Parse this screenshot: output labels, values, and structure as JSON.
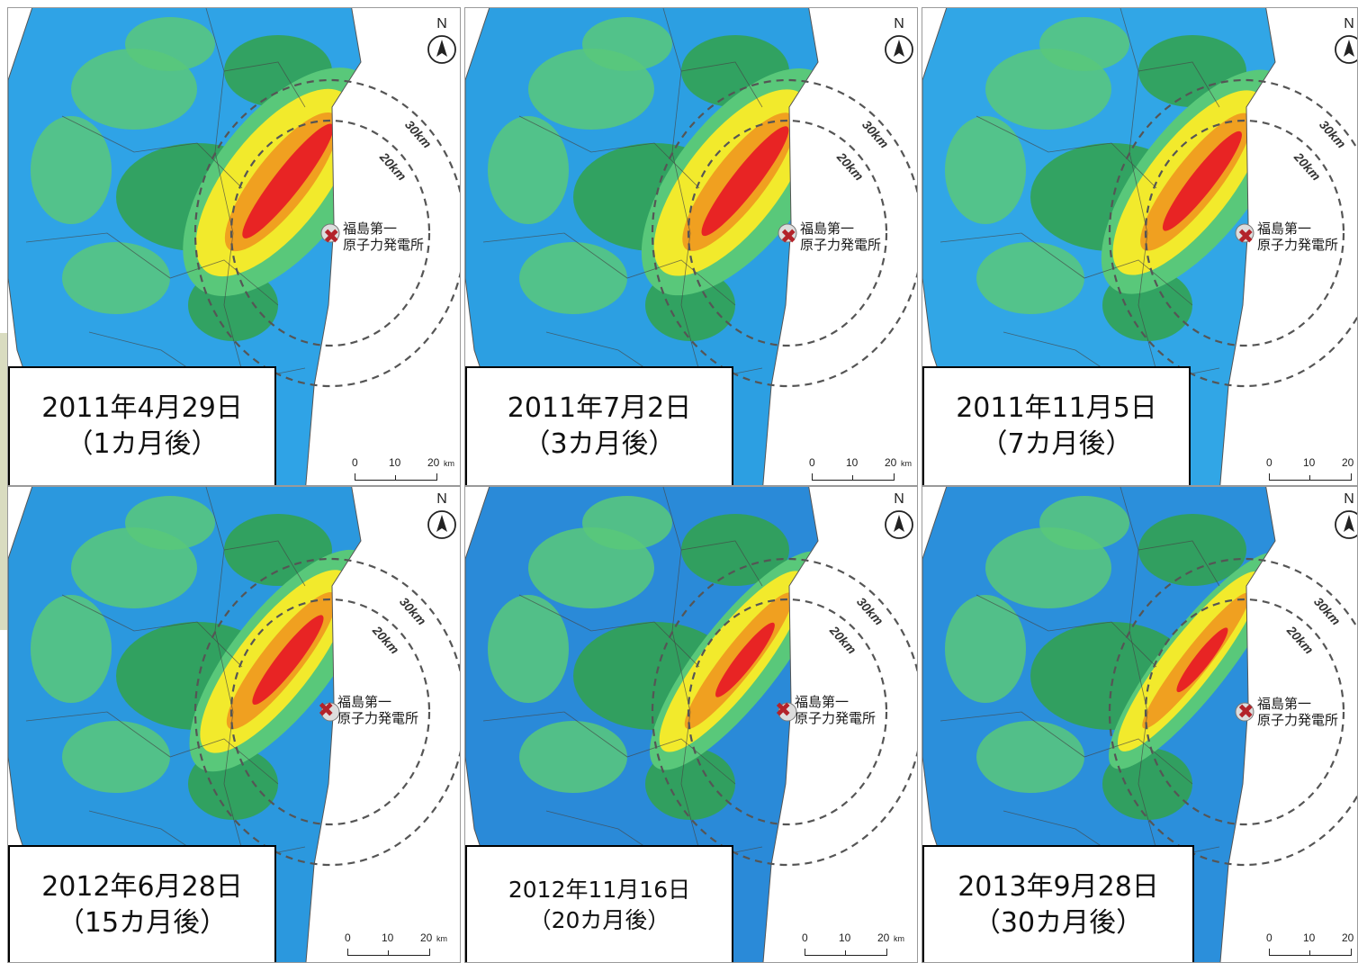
{
  "panels": [
    {
      "date": "2011年4月29日",
      "elapsed": "（1カ月後）"
    },
    {
      "date": "2011年7月2日",
      "elapsed": "（3カ月後）"
    },
    {
      "date": "2011年11月5日",
      "elapsed": "（7カ月後）"
    },
    {
      "date": "2012年6月28日",
      "elapsed": "（15カ月後）"
    },
    {
      "date": "2012年11月16日",
      "elapsed": "（20カ月後）"
    },
    {
      "date": "2013年9月28日",
      "elapsed": "（30カ月後）"
    }
  ],
  "plant_label": {
    "line1": "福島第一",
    "line2": "原子力発電所"
  },
  "ring_labels": {
    "outer": "30km",
    "inner": "20km"
  },
  "north_label": "N",
  "scale_bar": {
    "ticks": [
      "0",
      "10",
      "20"
    ],
    "unit": "km"
  },
  "colors": {
    "background_low": "#2f9fe0",
    "medium_low": "#59c87a",
    "medium": "#32a24a",
    "high": "#f2ea2c",
    "very_high": "#f0a020",
    "highest": "#e82424",
    "ocean": "#ffffff",
    "marker": "#b3232a"
  },
  "icons": {
    "north": "north-arrow-icon",
    "plant": "x-mark-icon"
  }
}
